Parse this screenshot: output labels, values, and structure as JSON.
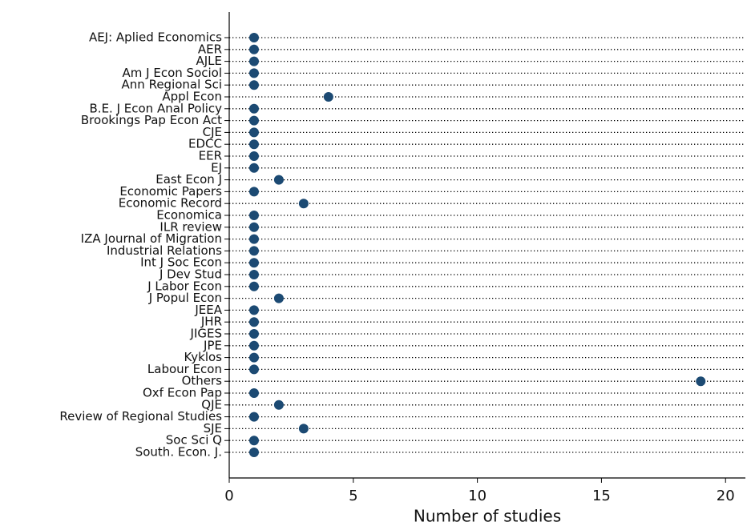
{
  "chart_data": {
    "type": "dot",
    "xlabel": "Number of studies",
    "categories": [
      "AEJ: Aplied Economics",
      "AER",
      "AJLE",
      "Am J Econ Sociol",
      "Ann Regional Sci",
      "Appl Econ",
      "B.E. J Econ Anal Policy",
      "Brookings Pap Econ Act",
      "CJE",
      "EDCC",
      "EER",
      "EJ",
      "East Econ J",
      "Economic Papers",
      "Economic Record",
      "Economica",
      "ILR review",
      "IZA Journal of Migration",
      "Industrial Relations",
      "Int J Soc Econ",
      "J Dev Stud",
      "J Labor Econ",
      "J Popul Econ",
      "JEEA",
      "JHR",
      "JIGES",
      "JPE",
      "Kyklos",
      "Labour Econ",
      "Others",
      "Oxf Econ Pap",
      "QJE",
      "Review of Regional Studies",
      "SJE",
      "Soc Sci Q",
      "South. Econ. J."
    ],
    "values": [
      1,
      1,
      1,
      1,
      1,
      4,
      1,
      1,
      1,
      1,
      1,
      1,
      2,
      1,
      3,
      1,
      1,
      1,
      1,
      1,
      1,
      1,
      2,
      1,
      1,
      1,
      1,
      1,
      1,
      19,
      1,
      2,
      1,
      3,
      1,
      1
    ],
    "color": "#1c4a73",
    "xlim": [
      0,
      20.8
    ],
    "xticks": [
      0,
      5,
      10,
      15,
      20
    ]
  }
}
